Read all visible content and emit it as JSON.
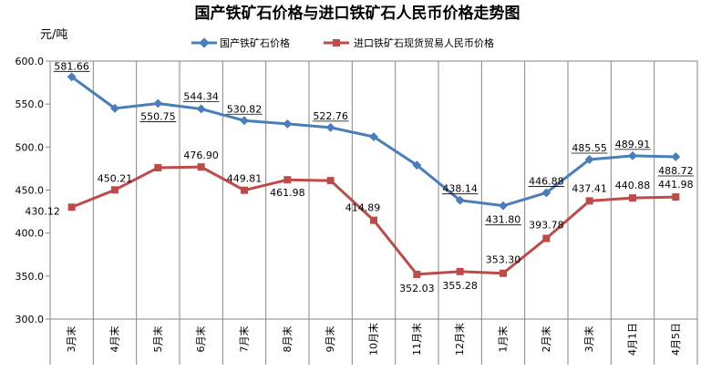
{
  "chart_data": {
    "type": "line",
    "title": "国产铁矿石价格与进口铁矿石人民币价格走势图",
    "ylabel": "元/吨",
    "ylim": [
      300,
      600
    ],
    "yticks": [
      "300.0",
      "350.0",
      "400.0",
      "450.0",
      "500.0",
      "550.0",
      "600.0"
    ],
    "ytick_values": [
      300,
      350,
      400,
      450,
      500,
      550,
      600
    ],
    "categories": [
      "3月末",
      "4月末",
      "5月末",
      "6月末",
      "7月末",
      "8月末",
      "9月末",
      "10月末",
      "11月末",
      "12月末",
      "1月末",
      "2月末",
      "3月末",
      "4月1日",
      "4月5日"
    ],
    "grid": "vertical",
    "legend_position": "top",
    "series": [
      {
        "name": "国产铁矿石价格",
        "color": "#4a7ebb",
        "marker": "diamond",
        "values": [
          581.66,
          545,
          550.75,
          544.34,
          530.82,
          527,
          522.76,
          512,
          479,
          438.14,
          431.8,
          446.88,
          485.55,
          489.91,
          488.72
        ],
        "labels": [
          "581.66",
          "",
          "550.75",
          "544.34",
          "530.82",
          "",
          "522.76",
          "",
          "",
          "438.14",
          "431.80",
          "446.88",
          "485.55",
          "489.91",
          "488.72"
        ]
      },
      {
        "name": "进口铁矿石现货贸易人民币价格",
        "color": "#be4b48",
        "marker": "square",
        "values": [
          430.12,
          450.21,
          476,
          476.9,
          449.81,
          461.98,
          461,
          414.89,
          352.03,
          355.28,
          353.3,
          393.78,
          437.41,
          440.88,
          441.98
        ],
        "labels": [
          "430.12",
          "450.21",
          "",
          "476.90",
          "449.81",
          "461.98",
          "",
          "414.89",
          "352.03",
          "355.28",
          "353.30",
          "393.78",
          "437.41",
          "440.88",
          "441.98"
        ]
      }
    ]
  }
}
